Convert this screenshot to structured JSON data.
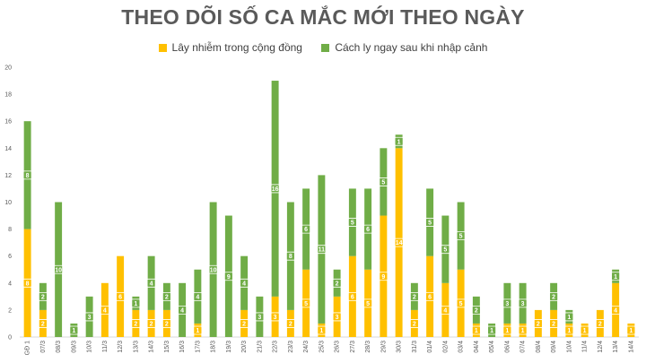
{
  "chart_data": {
    "type": "bar",
    "stacked": true,
    "title": "THEO DÕI SỐ CA MẮC MỚI THEO NGÀY",
    "xlabel": "",
    "ylabel": "",
    "ylim": [
      0,
      20
    ],
    "yticks": [
      0,
      2,
      4,
      6,
      8,
      10,
      12,
      14,
      16,
      18,
      20
    ],
    "grid": false,
    "legend_position": "top",
    "categories": [
      "GĐ 1",
      "07/3",
      "08/3",
      "09/3",
      "10/3",
      "11/3",
      "12/3",
      "13/3",
      "14/3",
      "15/3",
      "16/3",
      "17/3",
      "18/3",
      "19/3",
      "20/3",
      "21/3",
      "22/3",
      "23/3",
      "24/3",
      "25/3",
      "26/3",
      "27/3",
      "28/3",
      "29/3",
      "30/3",
      "31/3",
      "01/4",
      "02/4",
      "03/4",
      "04/4",
      "05/4",
      "06/4",
      "07/4",
      "08/4",
      "09/4",
      "10/4",
      "11/4",
      "12/4",
      "13/4",
      "14/4"
    ],
    "series": [
      {
        "name": "Lây nhiễm trong cộng đồng",
        "color": "#ffc000",
        "values": [
          8,
          2,
          0,
          0,
          0,
          4,
          6,
          2,
          2,
          2,
          0,
          1,
          0,
          0,
          2,
          0,
          3,
          2,
          5,
          1,
          3,
          6,
          5,
          9,
          14,
          2,
          6,
          4,
          5,
          1,
          0,
          1,
          1,
          2,
          2,
          1,
          1,
          2,
          4,
          1
        ]
      },
      {
        "name": "Cách ly ngay sau khi nhập cảnh",
        "color": "#70ad47",
        "values": [
          8,
          2,
          10,
          1,
          3,
          0,
          0,
          1,
          4,
          2,
          4,
          4,
          10,
          9,
          4,
          3,
          16,
          8,
          6,
          11,
          2,
          5,
          6,
          5,
          1,
          2,
          5,
          5,
          5,
          2,
          1,
          3,
          3,
          0,
          2,
          1,
          0,
          0,
          1,
          0
        ]
      }
    ]
  }
}
